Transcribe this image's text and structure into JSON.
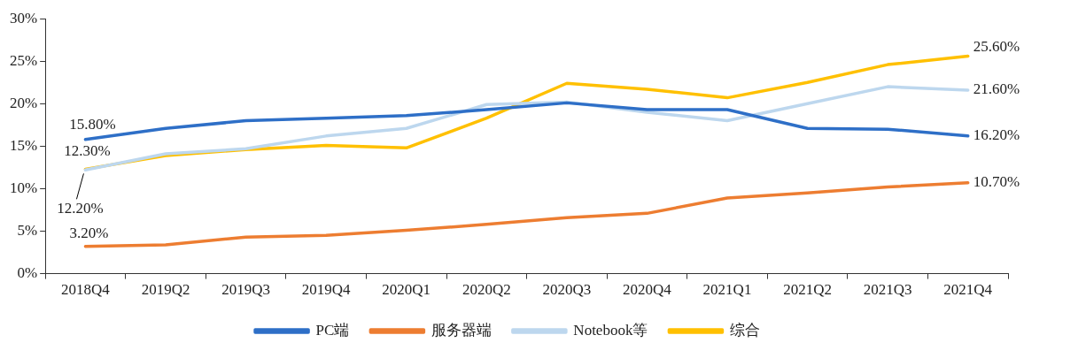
{
  "chart_data": {
    "type": "line",
    "categories": [
      "2018Q4",
      "2019Q2",
      "2019Q3",
      "2019Q4",
      "2020Q1",
      "2020Q2",
      "2020Q3",
      "2020Q4",
      "2021Q1",
      "2021Q2",
      "2021Q3",
      "2021Q4"
    ],
    "series": [
      {
        "name": "PC端",
        "color": "#2e6fc7",
        "values": [
          15.8,
          17.1,
          18.0,
          18.3,
          18.6,
          19.3,
          20.1,
          19.3,
          19.3,
          17.1,
          17.0,
          16.2
        ],
        "value_labels": [
          "15.80%",
          null,
          null,
          null,
          null,
          null,
          null,
          null,
          null,
          null,
          null,
          "16.20%"
        ]
      },
      {
        "name": "服务器端",
        "color": "#ed7d31",
        "values": [
          3.2,
          3.4,
          4.3,
          4.5,
          5.1,
          5.8,
          6.6,
          7.1,
          8.9,
          9.5,
          10.2,
          10.7
        ],
        "value_labels": [
          "3.20%",
          null,
          null,
          null,
          null,
          null,
          null,
          null,
          null,
          null,
          null,
          "10.70%"
        ]
      },
      {
        "name": "Notebook等",
        "color": "#bdd7ee",
        "values": [
          12.2,
          14.1,
          14.7,
          16.2,
          17.1,
          19.9,
          20.2,
          19.0,
          18.0,
          20.0,
          22.0,
          21.6
        ],
        "value_labels": [
          "12.20%",
          null,
          null,
          null,
          null,
          null,
          null,
          null,
          null,
          null,
          null,
          "21.60%"
        ]
      },
      {
        "name": "综合",
        "color": "#ffc000",
        "values": [
          12.3,
          13.9,
          14.6,
          15.1,
          14.8,
          18.3,
          22.4,
          21.7,
          20.7,
          22.5,
          24.6,
          25.6
        ],
        "value_labels": [
          "12.30%",
          null,
          null,
          null,
          null,
          null,
          null,
          null,
          null,
          null,
          null,
          "25.60%"
        ]
      }
    ],
    "ylim": [
      0,
      30
    ],
    "yticks": [
      {
        "value": 0,
        "label": "0%"
      },
      {
        "value": 5,
        "label": "5%"
      },
      {
        "value": 10,
        "label": "10%"
      },
      {
        "value": 15,
        "label": "15%"
      },
      {
        "value": 20,
        "label": "20%"
      },
      {
        "value": 25,
        "label": "25%"
      },
      {
        "value": 30,
        "label": "30%"
      }
    ],
    "grid": false,
    "legend": "bottom",
    "marker": "none",
    "line_style": "solid"
  }
}
